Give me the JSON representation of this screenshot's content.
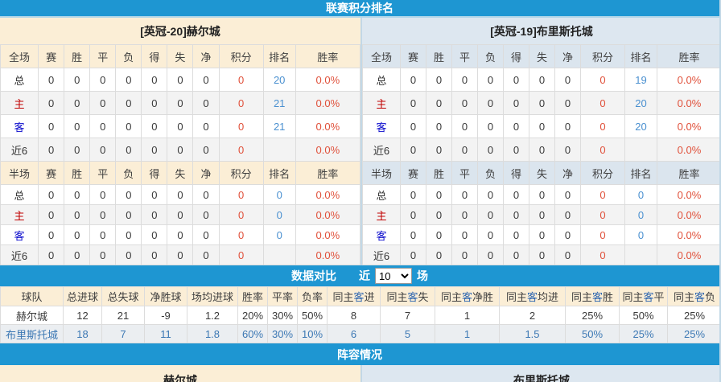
{
  "sections": {
    "league_ranking_title": "联赛积分排名",
    "compare_title": "数据对比",
    "compare_near": "近",
    "compare_games": "场",
    "compare_select_value": "10",
    "compare_select_options": [
      "10"
    ],
    "lineup_title": "阵容情况"
  },
  "stat_columns": [
    "赛",
    "胜",
    "平",
    "负",
    "得",
    "失",
    "净",
    "积分",
    "排名",
    "胜率"
  ],
  "teams": [
    {
      "side": "left",
      "title": "[英冠-20]赫尔城",
      "sections": [
        {
          "scope": "全场",
          "rows": [
            {
              "label": "总",
              "values": [
                "0",
                "0",
                "0",
                "0",
                "0",
                "0",
                "0",
                "0",
                "20",
                "0.0%"
              ]
            },
            {
              "label": "主",
              "values": [
                "0",
                "0",
                "0",
                "0",
                "0",
                "0",
                "0",
                "0",
                "21",
                "0.0%"
              ]
            },
            {
              "label": "客",
              "values": [
                "0",
                "0",
                "0",
                "0",
                "0",
                "0",
                "0",
                "0",
                "21",
                "0.0%"
              ]
            },
            {
              "label": "近6",
              "values": [
                "0",
                "0",
                "0",
                "0",
                "0",
                "0",
                "0",
                "0",
                "",
                "0.0%"
              ]
            }
          ]
        },
        {
          "scope": "半场",
          "rows": [
            {
              "label": "总",
              "values": [
                "0",
                "0",
                "0",
                "0",
                "0",
                "0",
                "0",
                "0",
                "0",
                "0.0%"
              ]
            },
            {
              "label": "主",
              "values": [
                "0",
                "0",
                "0",
                "0",
                "0",
                "0",
                "0",
                "0",
                "0",
                "0.0%"
              ]
            },
            {
              "label": "客",
              "values": [
                "0",
                "0",
                "0",
                "0",
                "0",
                "0",
                "0",
                "0",
                "0",
                "0.0%"
              ]
            },
            {
              "label": "近6",
              "values": [
                "0",
                "0",
                "0",
                "0",
                "0",
                "0",
                "0",
                "0",
                "",
                "0.0%"
              ]
            }
          ]
        }
      ]
    },
    {
      "side": "right",
      "title": "[英冠-19]布里斯托城",
      "sections": [
        {
          "scope": "全场",
          "rows": [
            {
              "label": "总",
              "values": [
                "0",
                "0",
                "0",
                "0",
                "0",
                "0",
                "0",
                "0",
                "19",
                "0.0%"
              ]
            },
            {
              "label": "主",
              "values": [
                "0",
                "0",
                "0",
                "0",
                "0",
                "0",
                "0",
                "0",
                "20",
                "0.0%"
              ]
            },
            {
              "label": "客",
              "values": [
                "0",
                "0",
                "0",
                "0",
                "0",
                "0",
                "0",
                "0",
                "20",
                "0.0%"
              ]
            },
            {
              "label": "近6",
              "values": [
                "0",
                "0",
                "0",
                "0",
                "0",
                "0",
                "0",
                "0",
                "",
                "0.0%"
              ]
            }
          ]
        },
        {
          "scope": "半场",
          "rows": [
            {
              "label": "总",
              "values": [
                "0",
                "0",
                "0",
                "0",
                "0",
                "0",
                "0",
                "0",
                "0",
                "0.0%"
              ]
            },
            {
              "label": "主",
              "values": [
                "0",
                "0",
                "0",
                "0",
                "0",
                "0",
                "0",
                "0",
                "0",
                "0.0%"
              ]
            },
            {
              "label": "客",
              "values": [
                "0",
                "0",
                "0",
                "0",
                "0",
                "0",
                "0",
                "0",
                "0",
                "0.0%"
              ]
            },
            {
              "label": "近6",
              "values": [
                "0",
                "0",
                "0",
                "0",
                "0",
                "0",
                "0",
                "0",
                "",
                "0.0%"
              ]
            }
          ]
        }
      ]
    }
  ],
  "comparison": {
    "headers": [
      "球队",
      "总进球",
      "总失球",
      "净胜球",
      "场均进球",
      "胜率",
      "平率",
      "负率",
      "同主客进",
      "同主客失",
      "同主客净胜",
      "同主客均进",
      "同主客胜",
      "同主客平",
      "同主客负"
    ],
    "rows": [
      {
        "team": "赫尔城",
        "values": [
          "12",
          "21",
          "-9",
          "1.2",
          "20%",
          "30%",
          "50%",
          "8",
          "7",
          "1",
          "2",
          "25%",
          "50%",
          "25%"
        ]
      },
      {
        "team": "布里斯托城",
        "values": [
          "18",
          "7",
          "11",
          "1.8",
          "60%",
          "30%",
          "10%",
          "6",
          "5",
          "1",
          "1.5",
          "50%",
          "25%",
          "25%"
        ]
      }
    ]
  },
  "lineup": {
    "left_team": "赫尔城",
    "right_team": "布里斯托城"
  },
  "colors": {
    "bar_blue": "#1e96d2",
    "cream_header": "#fbeed6",
    "light_blue_header": "#dde7f0",
    "points_red": "#e0503a",
    "rank_blue": "#4a90d0",
    "home_label_red": "#c00000",
    "away_label_blue": "#0a0acc",
    "comparison_value_blue": "#3c78b4"
  }
}
